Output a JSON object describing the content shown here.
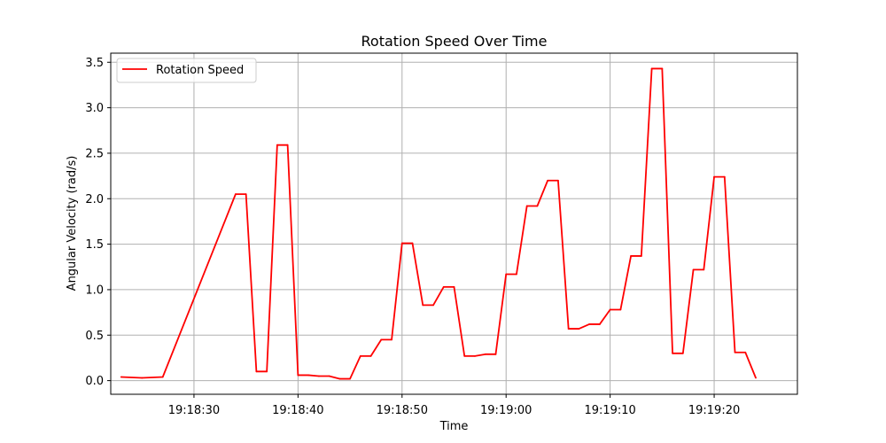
{
  "chart_data": {
    "type": "line",
    "title": "Rotation Speed Over Time",
    "xlabel": "Time",
    "ylabel": "Angular Velocity (rad/s)",
    "ylim": [
      -0.15,
      3.6
    ],
    "grid": true,
    "legend_placement": "top-left",
    "x_ticks": [
      "19:18:30",
      "19:18:40",
      "19:18:50",
      "19:19:00",
      "19:19:10",
      "19:19:20"
    ],
    "y_ticks": [
      "0.0",
      "0.5",
      "1.0",
      "1.5",
      "2.0",
      "2.5",
      "3.0",
      "3.5"
    ],
    "x_range": [
      "19:18:22",
      "19:19:28"
    ],
    "series": [
      {
        "name": "Rotation Speed",
        "color": "#ff0000",
        "x": [
          "19:18:23",
          "19:18:25",
          "19:18:27",
          "19:18:34",
          "19:18:35",
          "19:18:36",
          "19:18:37",
          "19:18:38",
          "19:18:39",
          "19:18:40",
          "19:18:41",
          "19:18:42",
          "19:18:43",
          "19:18:44",
          "19:18:45",
          "19:18:46",
          "19:18:47",
          "19:18:48",
          "19:18:49",
          "19:18:50",
          "19:18:51",
          "19:18:52",
          "19:18:53",
          "19:18:54",
          "19:18:55",
          "19:18:56",
          "19:18:57",
          "19:18:58",
          "19:18:59",
          "19:19:00",
          "19:19:01",
          "19:19:02",
          "19:19:03",
          "19:19:04",
          "19:19:05",
          "19:19:06",
          "19:19:07",
          "19:19:08",
          "19:19:09",
          "19:19:10",
          "19:19:11",
          "19:19:12",
          "19:19:13",
          "19:19:14",
          "19:19:15",
          "19:19:16",
          "19:19:17",
          "19:19:18",
          "19:19:19",
          "19:19:20",
          "19:19:21",
          "19:19:22",
          "19:19:23",
          "19:19:24"
        ],
        "values": [
          0.04,
          0.03,
          0.04,
          2.05,
          2.05,
          0.1,
          0.1,
          2.59,
          2.59,
          0.06,
          0.06,
          0.05,
          0.05,
          0.02,
          0.02,
          0.27,
          0.27,
          0.45,
          0.45,
          1.51,
          1.51,
          0.83,
          0.83,
          1.03,
          1.03,
          0.27,
          0.27,
          0.29,
          0.29,
          1.17,
          1.17,
          1.92,
          1.92,
          2.2,
          2.2,
          0.57,
          0.57,
          0.62,
          0.62,
          0.78,
          0.78,
          1.37,
          1.37,
          3.43,
          3.43,
          0.3,
          0.3,
          1.22,
          1.22,
          2.24,
          2.24,
          0.31,
          0.31,
          0.03
        ]
      }
    ]
  }
}
